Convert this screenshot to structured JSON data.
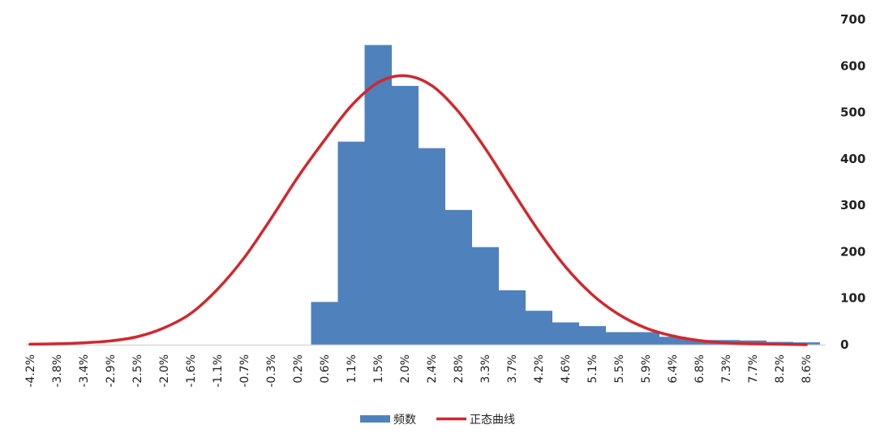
{
  "chart_data": {
    "type": "bar",
    "title": "",
    "xlabel": "",
    "ylabel": "",
    "ylim": [
      0,
      700
    ],
    "y_ticks": [
      0,
      100,
      200,
      300,
      400,
      500,
      600,
      700
    ],
    "y_axis_position": "right",
    "grid": false,
    "legend_position": "bottom-center",
    "categories": [
      "-4.2%",
      "-3.8%",
      "-3.4%",
      "-2.9%",
      "-2.5%",
      "-2.0%",
      "-1.6%",
      "-1.1%",
      "-0.7%",
      "-0.3%",
      "0.2%",
      "0.6%",
      "1.1%",
      "1.5%",
      "2.0%",
      "2.4%",
      "2.8%",
      "3.3%",
      "3.7%",
      "4.2%",
      "4.6%",
      "5.1%",
      "5.5%",
      "5.9%",
      "6.4%",
      "6.8%",
      "7.3%",
      "7.7%",
      "8.2%",
      "8.6%"
    ],
    "series": [
      {
        "name": "频数",
        "type": "bar",
        "color": "#4f81bd",
        "values": [
          0,
          0,
          0,
          0,
          0,
          0,
          0,
          0,
          0,
          0,
          0,
          92,
          437,
          645,
          557,
          423,
          290,
          210,
          117,
          73,
          48,
          40,
          27,
          27,
          17,
          10,
          10,
          9,
          6,
          5
        ]
      },
      {
        "name": "正态曲线",
        "type": "line",
        "color": "#d0282e",
        "values": [
          1,
          2,
          4,
          8,
          17,
          36,
          67,
          119,
          187,
          271,
          360,
          440,
          514,
          564,
          579,
          558,
          502,
          423,
          333,
          245,
          168,
          108,
          65,
          36,
          19,
          9,
          4,
          2,
          1,
          0
        ]
      }
    ]
  }
}
